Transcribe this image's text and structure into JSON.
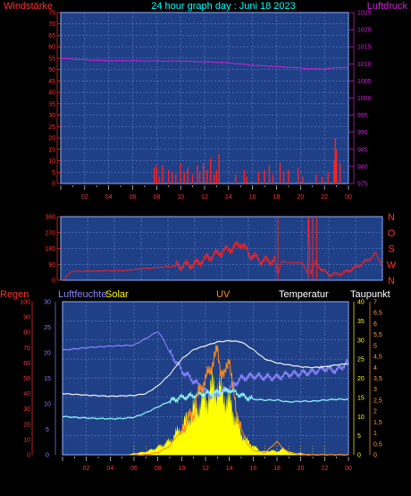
{
  "header": {
    "left_title": "Windstärke",
    "center_title": "24 hour graph day : Juni 18 2023",
    "right_title": "Luftdruck"
  },
  "colors": {
    "bg": "#000000",
    "plot_bg": "#1f3f86",
    "grid": "#6f8fd8",
    "wind": "#ff2020",
    "pressure": "#d020d8",
    "winddir": "#ff2020",
    "humidity": "#8a86ff",
    "solar": "#ffff00",
    "uv": "#ff8c1a",
    "temperature": "#ffffff",
    "dewpoint": "#8fffff",
    "title": "#00ffff",
    "magenta_axis": "#d020d8",
    "red_axis": "#ff3030",
    "blue_axis": "#8080ff",
    "orange_axis": "#ffa040",
    "yellow_axis": "#ffff00"
  },
  "chart_data": [
    {
      "id": "wind_pressure",
      "type": "line",
      "x_ticks": [
        "02",
        "04",
        "06",
        "08",
        "10",
        "12",
        "14",
        "16",
        "18",
        "20",
        "22",
        "00"
      ],
      "y_left_label": "Windstärke",
      "y_left_ticks": [
        "0",
        "5",
        "10",
        "15",
        "20",
        "25",
        "30",
        "35",
        "40",
        "45",
        "50",
        "55",
        "60",
        "65",
        "70",
        "75"
      ],
      "y_left_range": [
        0,
        75
      ],
      "y_right_label": "Luftdruck",
      "y_right_ticks": [
        "975",
        "980",
        "985",
        "990",
        "995",
        "1000",
        "1005",
        "1010",
        "1015",
        "1020",
        "1025"
      ],
      "y_right_range": [
        975,
        1025
      ],
      "pressure_series": {
        "x": [
          0,
          2,
          4,
          6,
          8,
          10,
          12,
          14,
          16,
          18,
          20,
          21,
          22,
          23,
          24
        ],
        "y": [
          1011.6,
          1011.2,
          1010.9,
          1010.9,
          1010.8,
          1010.8,
          1010.6,
          1010.3,
          1009.6,
          1009.2,
          1008.8,
          1008.5,
          1008.5,
          1008.9,
          1009.0
        ]
      },
      "wind_series": {
        "x": [
          7.8,
          8.0,
          8.2,
          8.5,
          9.0,
          9.3,
          9.6,
          10.0,
          10.3,
          10.6,
          11.0,
          11.4,
          11.6,
          11.9,
          12.2,
          12.5,
          12.8,
          13.0,
          13.2,
          14.6,
          15.3,
          15.5,
          16.5,
          17.0,
          17.4,
          17.7,
          18.3,
          18.6,
          19.0,
          19.8,
          20.2,
          21.3,
          21.8,
          22.3,
          22.8,
          22.9,
          23.0,
          23.3
        ],
        "y": [
          7,
          8,
          3,
          8,
          6,
          5,
          4,
          9,
          5,
          7,
          4,
          8,
          5,
          9,
          6,
          11,
          4,
          6,
          13,
          4,
          6,
          3,
          5,
          6,
          8,
          4,
          9,
          5,
          6,
          7,
          3,
          4,
          3,
          5,
          10,
          20,
          15,
          9
        ]
      }
    },
    {
      "id": "wind_direction",
      "type": "line",
      "y_left_ticks": [
        "0",
        "90",
        "180",
        "270",
        "360"
      ],
      "y_left_range": [
        0,
        360
      ],
      "y_right_ticks": [
        "N",
        "W",
        "S",
        "O",
        "N"
      ],
      "series": {
        "x": [
          0,
          0.2,
          0.8,
          5,
          5.1,
          10,
          11,
          12,
          13,
          13.5,
          14,
          15,
          16,
          16.2,
          16.5,
          16.8,
          17.0,
          18,
          18.4,
          18.5,
          18.6,
          19,
          19.5,
          20,
          21,
          22,
          23,
          23.5,
          24
        ],
        "y": [
          0,
          4,
          50,
          55,
          58,
          90,
          130,
          160,
          190,
          210,
          150,
          110,
          110,
          30,
          110,
          100,
          100,
          100,
          40,
          360,
          40,
          100,
          60,
          30,
          40,
          70,
          120,
          150,
          90
        ]
      }
    },
    {
      "id": "climate",
      "type": "line",
      "legend": [
        "Regen",
        "Luftfeuchte",
        "Solar",
        "UV",
        "Temperatur",
        "Taupunkt"
      ],
      "y_regen_ticks": [
        "0",
        "10",
        "20",
        "30",
        "40",
        "50",
        "60",
        "70",
        "80",
        "90",
        "100"
      ],
      "y_regen_range": [
        0,
        100
      ],
      "y_hum_ticks": [
        "0",
        "5",
        "10",
        "15",
        "20",
        "25",
        "30"
      ],
      "y_hum_range": [
        0,
        30
      ],
      "y_temp_ticks": [
        "0",
        "5",
        "10",
        "15",
        "20",
        "25",
        "30",
        "35",
        "40"
      ],
      "y_temp_range": [
        0,
        40
      ],
      "y_uv_ticks": [
        "0",
        "0,5",
        "1",
        "1,5",
        "2",
        "2,5",
        "3",
        "3,5",
        "4",
        "4,5",
        "5",
        "5,5",
        "6",
        "6,5",
        "7"
      ],
      "y_uv_range": [
        0,
        7
      ],
      "temperature": {
        "x": [
          0,
          2,
          4,
          5,
          6,
          7,
          8,
          9,
          10,
          11,
          12,
          13,
          14,
          15,
          16,
          17,
          18,
          19,
          20,
          21,
          22,
          23,
          24
        ],
        "y": [
          16,
          15.6,
          15.3,
          15.4,
          15.5,
          16,
          18,
          21,
          25,
          27.5,
          28.5,
          29.5,
          29.8,
          29.5,
          27.5,
          25,
          24,
          23.5,
          23,
          22.8,
          23,
          23.5,
          23.8
        ]
      },
      "dewpoint": {
        "x": [
          0,
          2,
          4,
          5,
          6,
          7,
          8,
          9,
          10,
          11,
          12,
          13,
          14,
          15,
          16,
          17,
          18,
          19,
          20,
          21,
          22,
          23,
          24
        ],
        "y": [
          10,
          9.6,
          9.4,
          9.5,
          9.8,
          11,
          12.5,
          14,
          15,
          15.5,
          16,
          16.2,
          17,
          15.5,
          14.5,
          14.3,
          14.3,
          13.8,
          14,
          14,
          14.3,
          14.5,
          14.5
        ]
      },
      "humidity": {
        "x": [
          0,
          2,
          4,
          6,
          7,
          8,
          8.5,
          9,
          9.5,
          10,
          10.5,
          11,
          11.5,
          12,
          12.5,
          13,
          13.5,
          14,
          15,
          16,
          17,
          18,
          19,
          20,
          21,
          22,
          23,
          24
        ],
        "y": [
          20.5,
          21,
          21.3,
          21.5,
          22.8,
          24.2,
          22.5,
          20,
          18.5,
          16.5,
          15.5,
          14.5,
          13.5,
          12.5,
          11.5,
          12,
          12.5,
          13,
          15,
          15.5,
          15.2,
          15.2,
          15.8,
          16,
          16.2,
          17,
          16.5,
          18.2
        ]
      },
      "uv": {
        "x": [
          6,
          7,
          8,
          9,
          9.5,
          10,
          10.5,
          11,
          11.3,
          11.6,
          12,
          12.3,
          12.6,
          13,
          13.3,
          13.6,
          14,
          14.3,
          14.6,
          15,
          15.5,
          16,
          17,
          17.6,
          18,
          18.5,
          19,
          20,
          21,
          24
        ],
        "y": [
          0,
          0,
          0.1,
          0.4,
          0.8,
          1.1,
          1.6,
          1.9,
          2.6,
          3.1,
          3.4,
          3.8,
          4.2,
          4.8,
          3.9,
          3.5,
          4.6,
          2.9,
          2.0,
          1.2,
          0.5,
          0.2,
          0.1,
          0.4,
          0.6,
          0.3,
          0.1,
          0,
          0,
          0
        ]
      },
      "solar_percent": {
        "x": [
          0,
          5.5,
          6,
          7,
          8,
          9,
          9.5,
          10,
          10.5,
          11,
          11.5,
          12,
          12.3,
          12.6,
          13,
          13.3,
          13.6,
          14,
          14.3,
          14.6,
          15,
          15.5,
          16,
          16.5,
          17,
          17.5,
          18,
          18.5,
          19,
          19.5,
          20,
          20.5,
          21,
          24
        ],
        "y": [
          0,
          0,
          1,
          2,
          5,
          9,
          14,
          18,
          24,
          30,
          33,
          37,
          40,
          44,
          46,
          41,
          39,
          34,
          30,
          23,
          14,
          9,
          6,
          3,
          2,
          3,
          2,
          4,
          2,
          1,
          1,
          0.5,
          0,
          0
        ]
      }
    }
  ]
}
